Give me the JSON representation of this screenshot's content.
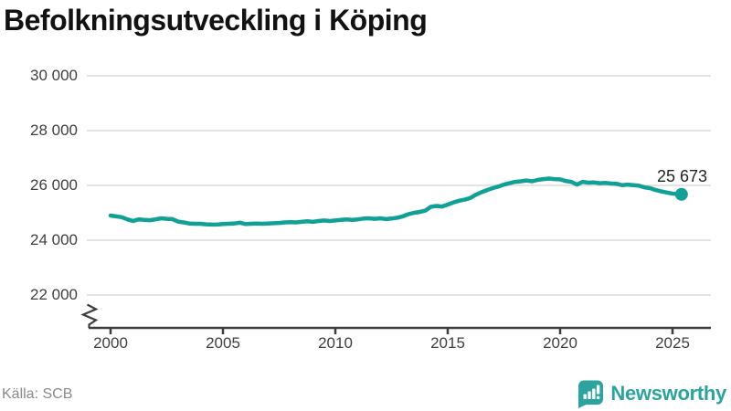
{
  "title": "Befolkningsutveckling i Köping",
  "source": "Källa: SCB",
  "branding": {
    "name": "Newsworthy",
    "logo_icon": "bar-chart-speech-bubble-icon"
  },
  "colors": {
    "line": "#10a096",
    "end_dot": "#10a096",
    "grid": "#e4e4e4",
    "axis": "#3d3d3d",
    "title_text": "#121212",
    "tick_text": "#3f3f3f",
    "source_text": "#8a8a8a",
    "end_label_text": "#232323",
    "brand": "#2ba39e",
    "background": "#ffffff"
  },
  "chart_data": {
    "type": "line",
    "title": "Befolkningsutveckling i Köping",
    "xlabel": "",
    "ylabel": "",
    "x_ticks": [
      "2000",
      "2005",
      "2010",
      "2015",
      "2020",
      "2025"
    ],
    "x_tick_values": [
      2000,
      2005,
      2010,
      2015,
      2020,
      2025
    ],
    "y_ticks": [
      "30 000",
      "28 000",
      "26 000",
      "24 000",
      "22 000"
    ],
    "y_tick_values": [
      30000,
      28000,
      26000,
      24000,
      22000
    ],
    "ylim": [
      22000,
      30000
    ],
    "xlim": [
      2000,
      2025.6
    ],
    "axis_break_at_origin": true,
    "grid": "horizontal",
    "legend": "none",
    "end_label": "25 673",
    "end_value": 25673,
    "series": [
      {
        "points": [
          [
            2000,
            24900
          ],
          [
            2000.25,
            24870
          ],
          [
            2000.5,
            24840
          ],
          [
            2000.75,
            24760
          ],
          [
            2001,
            24700
          ],
          [
            2001.25,
            24760
          ],
          [
            2001.5,
            24740
          ],
          [
            2001.75,
            24730
          ],
          [
            2002,
            24760
          ],
          [
            2002.25,
            24800
          ],
          [
            2002.5,
            24780
          ],
          [
            2002.75,
            24770
          ],
          [
            2003,
            24680
          ],
          [
            2003.25,
            24650
          ],
          [
            2003.5,
            24610
          ],
          [
            2003.75,
            24600
          ],
          [
            2004,
            24600
          ],
          [
            2004.25,
            24580
          ],
          [
            2004.5,
            24570
          ],
          [
            2004.75,
            24570
          ],
          [
            2005,
            24590
          ],
          [
            2005.25,
            24600
          ],
          [
            2005.5,
            24610
          ],
          [
            2005.75,
            24640
          ],
          [
            2006,
            24590
          ],
          [
            2006.25,
            24600
          ],
          [
            2006.5,
            24610
          ],
          [
            2006.75,
            24600
          ],
          [
            2007,
            24610
          ],
          [
            2007.25,
            24620
          ],
          [
            2007.5,
            24630
          ],
          [
            2007.75,
            24650
          ],
          [
            2008,
            24660
          ],
          [
            2008.25,
            24650
          ],
          [
            2008.5,
            24670
          ],
          [
            2008.75,
            24690
          ],
          [
            2009,
            24670
          ],
          [
            2009.25,
            24700
          ],
          [
            2009.5,
            24720
          ],
          [
            2009.75,
            24700
          ],
          [
            2010,
            24720
          ],
          [
            2010.25,
            24740
          ],
          [
            2010.5,
            24760
          ],
          [
            2010.75,
            24740
          ],
          [
            2011,
            24760
          ],
          [
            2011.25,
            24790
          ],
          [
            2011.5,
            24800
          ],
          [
            2011.75,
            24780
          ],
          [
            2012,
            24800
          ],
          [
            2012.25,
            24770
          ],
          [
            2012.5,
            24790
          ],
          [
            2012.75,
            24820
          ],
          [
            2013,
            24870
          ],
          [
            2013.25,
            24950
          ],
          [
            2013.5,
            25000
          ],
          [
            2013.75,
            25030
          ],
          [
            2014,
            25080
          ],
          [
            2014.25,
            25220
          ],
          [
            2014.5,
            25250
          ],
          [
            2014.75,
            25230
          ],
          [
            2015,
            25300
          ],
          [
            2015.25,
            25380
          ],
          [
            2015.5,
            25440
          ],
          [
            2015.75,
            25480
          ],
          [
            2016,
            25540
          ],
          [
            2016.25,
            25660
          ],
          [
            2016.5,
            25750
          ],
          [
            2016.75,
            25830
          ],
          [
            2017,
            25900
          ],
          [
            2017.25,
            25960
          ],
          [
            2017.5,
            26030
          ],
          [
            2017.75,
            26080
          ],
          [
            2018,
            26130
          ],
          [
            2018.25,
            26150
          ],
          [
            2018.5,
            26180
          ],
          [
            2018.75,
            26150
          ],
          [
            2019,
            26200
          ],
          [
            2019.25,
            26230
          ],
          [
            2019.5,
            26250
          ],
          [
            2019.75,
            26230
          ],
          [
            2020,
            26220
          ],
          [
            2020.25,
            26160
          ],
          [
            2020.5,
            26130
          ],
          [
            2020.75,
            26030
          ],
          [
            2021,
            26130
          ],
          [
            2021.25,
            26100
          ],
          [
            2021.5,
            26110
          ],
          [
            2021.75,
            26080
          ],
          [
            2022,
            26090
          ],
          [
            2022.25,
            26070
          ],
          [
            2022.5,
            26060
          ],
          [
            2022.75,
            26010
          ],
          [
            2023,
            26030
          ],
          [
            2023.25,
            26010
          ],
          [
            2023.5,
            25990
          ],
          [
            2023.75,
            25930
          ],
          [
            2024,
            25900
          ],
          [
            2024.25,
            25830
          ],
          [
            2024.5,
            25780
          ],
          [
            2024.75,
            25740
          ],
          [
            2025,
            25700
          ],
          [
            2025.25,
            25685
          ],
          [
            2025.4,
            25673
          ]
        ]
      }
    ]
  }
}
